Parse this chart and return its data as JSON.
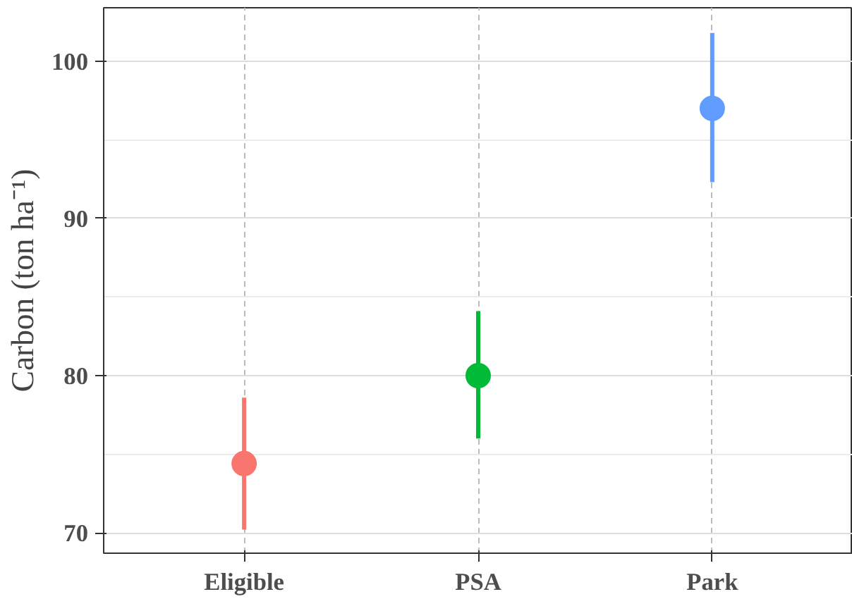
{
  "chart_data": {
    "type": "scatter",
    "ylabel": "Carbon (ton ha⁻¹)",
    "categories": [
      "Eligible",
      "PSA",
      "Park"
    ],
    "values": [
      74.4,
      80.0,
      97.0
    ],
    "colors": [
      "#f8766d",
      "#00ba38",
      "#619cff"
    ],
    "errors": [
      [
        70.2,
        78.6
      ],
      [
        76.0,
        84.1
      ],
      [
        92.3,
        101.8
      ]
    ],
    "ylim": [
      68.7,
      103.4
    ],
    "yticks": [
      70,
      80,
      90,
      100
    ],
    "grid": true,
    "marker": "circle"
  }
}
